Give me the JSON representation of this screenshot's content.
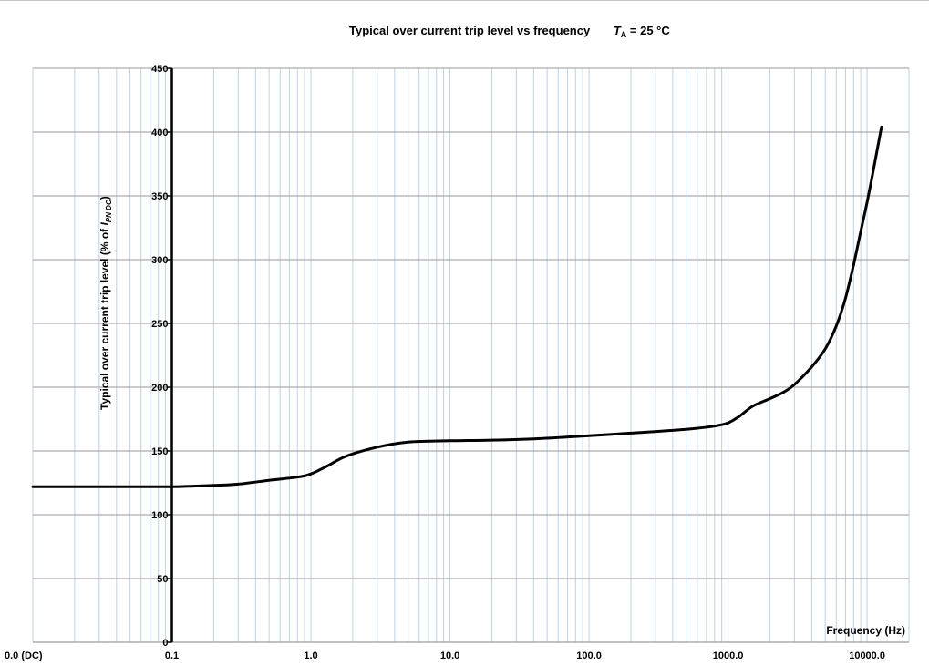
{
  "chart_data": {
    "type": "line",
    "title": "Typical over current trip level vs frequency",
    "title_condition": {
      "symbol": "T",
      "subscript": "A",
      "text": " = 25 °C"
    },
    "xlabel": "Frequency (Hz)",
    "ylabel": {
      "text": "Typical over current trip level (% of ",
      "symbol": "I",
      "subscript": "PN DC",
      "close": ")"
    },
    "x_scale": "log",
    "x_ticks": [
      {
        "label": "0.0 (DC)",
        "value": 0.01
      },
      {
        "label": "0.1",
        "value": 0.1
      },
      {
        "label": "1.0",
        "value": 1
      },
      {
        "label": "10.0",
        "value": 10
      },
      {
        "label": "100.0",
        "value": 100
      },
      {
        "label": "1000.0",
        "value": 1000
      },
      {
        "label": "10000.0",
        "value": 10000
      }
    ],
    "xlim": [
      0.01,
      20000
    ],
    "y_ticks": [
      "0",
      "50",
      "100",
      "150",
      "200",
      "250",
      "300",
      "350",
      "400",
      "450"
    ],
    "ylim": [
      0,
      450
    ],
    "grid": true,
    "series": [
      {
        "x": [
          0.01,
          0.02,
          0.05,
          0.1,
          0.15,
          0.2,
          0.3,
          0.5,
          0.8,
          1.0,
          1.3,
          1.8,
          3,
          5,
          10,
          20,
          40,
          100,
          200,
          500,
          800,
          1000,
          1200,
          1500,
          2000,
          2500,
          3000,
          4000,
          5000,
          6000,
          7000,
          8000,
          9000,
          10000,
          11000,
          12000,
          12700
        ],
        "y": [
          122,
          122,
          122,
          122,
          122.5,
          123,
          124,
          127,
          129.5,
          132,
          138,
          146,
          153,
          157,
          158,
          158.5,
          159.5,
          162,
          164,
          167,
          169.5,
          172,
          177,
          185,
          191,
          196,
          202,
          216,
          230,
          248,
          270,
          296,
          322,
          345,
          368,
          390,
          404
        ]
      }
    ]
  }
}
